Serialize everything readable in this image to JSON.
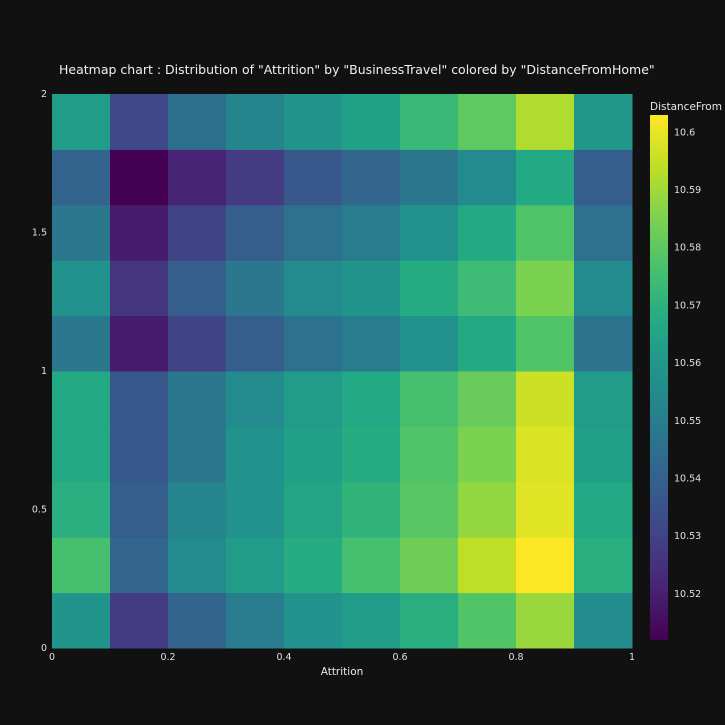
{
  "chart_data": {
    "type": "heatmap",
    "title": "Heatmap chart : Distribution of \"Attrition\" by \"BusinessTravel\" colored by \"DistanceFromHome\"",
    "xlabel": "Attrition",
    "ylabel": "",
    "xlim": [
      0,
      1
    ],
    "ylim": [
      0,
      2
    ],
    "x": [
      0.05,
      0.15,
      0.25,
      0.35,
      0.45,
      0.55,
      0.65,
      0.75,
      0.85,
      0.95
    ],
    "y": [
      0.1,
      0.3,
      0.5,
      0.7,
      0.9,
      1.1,
      1.3,
      1.5,
      1.7,
      1.9
    ],
    "x_ticks": [
      "0",
      "0.2",
      "0.4",
      "0.6",
      "0.8",
      "1"
    ],
    "y_ticks": [
      "0",
      "0.5",
      "1",
      "1.5",
      "2"
    ],
    "z": [
      [
        10.559,
        10.528,
        10.541,
        10.55,
        10.558,
        10.562,
        10.569,
        10.578,
        10.589,
        10.556
      ],
      [
        10.576,
        10.542,
        10.555,
        10.562,
        10.568,
        10.576,
        10.583,
        10.594,
        10.603,
        10.569
      ],
      [
        10.569,
        10.539,
        10.553,
        10.558,
        10.565,
        10.571,
        10.579,
        10.588,
        10.599,
        10.567
      ],
      [
        10.567,
        10.537,
        10.548,
        10.558,
        10.563,
        10.568,
        10.578,
        10.585,
        10.598,
        10.563
      ],
      [
        10.567,
        10.537,
        10.548,
        10.555,
        10.562,
        10.567,
        10.576,
        10.582,
        10.596,
        10.562
      ],
      [
        10.548,
        10.519,
        10.53,
        10.539,
        10.546,
        10.55,
        10.558,
        10.567,
        10.578,
        10.547
      ],
      [
        10.558,
        10.526,
        10.539,
        10.548,
        10.555,
        10.559,
        10.568,
        10.574,
        10.585,
        10.555
      ],
      [
        10.548,
        10.519,
        10.53,
        10.539,
        10.546,
        10.55,
        10.558,
        10.567,
        10.578,
        10.546
      ],
      [
        10.541,
        10.512,
        10.521,
        10.528,
        10.537,
        10.542,
        10.548,
        10.555,
        10.567,
        10.539
      ],
      [
        10.562,
        10.532,
        10.545,
        10.553,
        10.559,
        10.564,
        10.573,
        10.58,
        10.592,
        10.56
      ]
    ],
    "colorscale": "Viridis",
    "zmin": 10.512,
    "zmax": 10.603,
    "colorbar": {
      "title": "DistanceFrom",
      "ticks": [
        "10.52",
        "10.53",
        "10.54",
        "10.55",
        "10.56",
        "10.57",
        "10.58",
        "10.59",
        "10.6"
      ]
    },
    "grid": false,
    "background": "#111111"
  }
}
